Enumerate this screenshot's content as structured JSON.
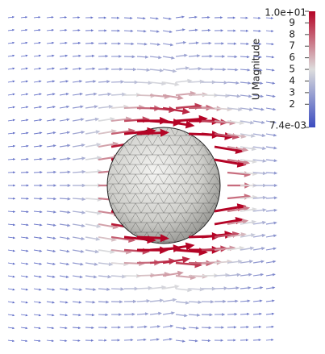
{
  "colorbar": {
    "title": "U Magnitude",
    "range": [
      {
        "value": 0.0074,
        "label": "7.4e-03"
      },
      {
        "value": 10,
        "label": "1.0e+01"
      }
    ],
    "ticks": [
      2,
      3,
      4,
      5,
      6,
      7,
      8,
      9
    ]
  }
}
